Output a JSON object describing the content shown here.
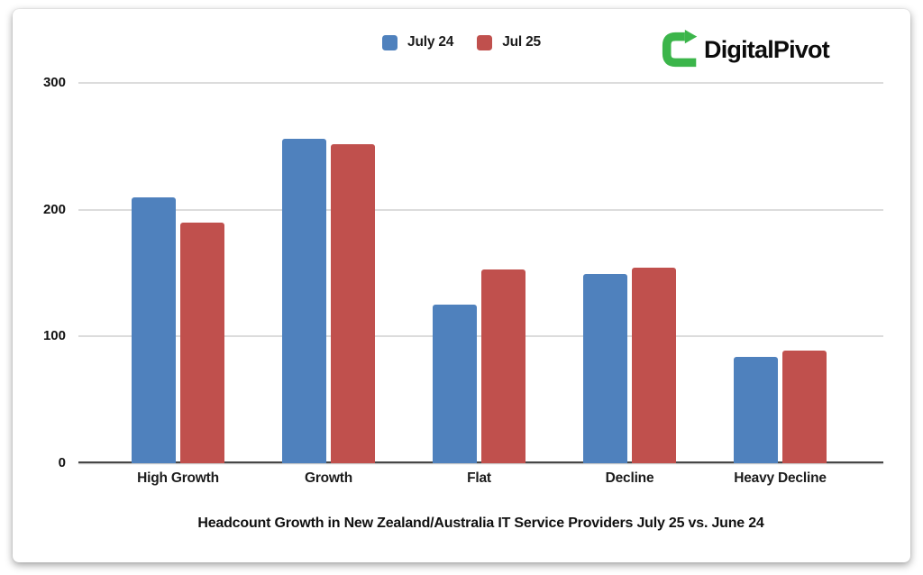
{
  "logo": {
    "text": "DigitalPivot",
    "icon": "pivot-arrow-icon",
    "icon_color": "#3BB54A"
  },
  "chart_data": {
    "type": "bar",
    "title": "Headcount Growth in New Zealand/Australia IT Service Providers July 25 vs. June 24",
    "categories": [
      "High Growth",
      "Growth",
      "Flat",
      "Decline",
      "Heavy Decline"
    ],
    "series": [
      {
        "name": "July 24",
        "color": "#4F81BD",
        "values": [
          210,
          256,
          125,
          149,
          84
        ]
      },
      {
        "name": "Jul 25",
        "color": "#C0504D",
        "values": [
          190,
          252,
          153,
          154,
          89
        ]
      }
    ],
    "yticks": [
      0,
      100,
      200,
      300
    ],
    "ylim": [
      0,
      300
    ],
    "grid": true,
    "legend_position": "top-center",
    "xlabel": "",
    "ylabel": "",
    "axis_color": "#474747",
    "gridline_color": "#dcdcdc"
  }
}
